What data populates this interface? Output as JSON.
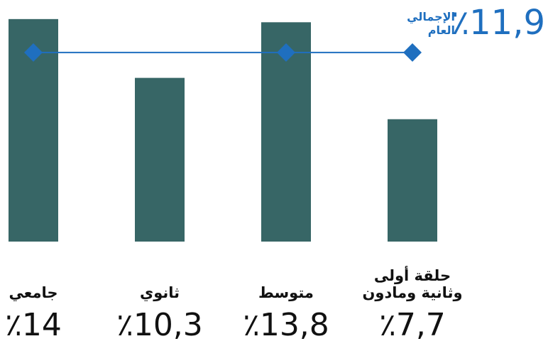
{
  "chart_data": {
    "type": "bar",
    "categories": [
      "جامعي",
      "ثانوي",
      "متوسط",
      "حلقة أولى وثانية ومادون"
    ],
    "values": [
      14,
      10.3,
      13.8,
      7.7
    ],
    "value_labels": [
      "٪14",
      "٪10,3",
      "٪13,8",
      "٪7,7"
    ],
    "color": "#376666",
    "ylim": [
      0,
      15.2
    ],
    "total": {
      "name": "الإجمالي العام",
      "value": 11.9,
      "value_label": "٪11,9",
      "color": "#1f6fbf"
    }
  }
}
